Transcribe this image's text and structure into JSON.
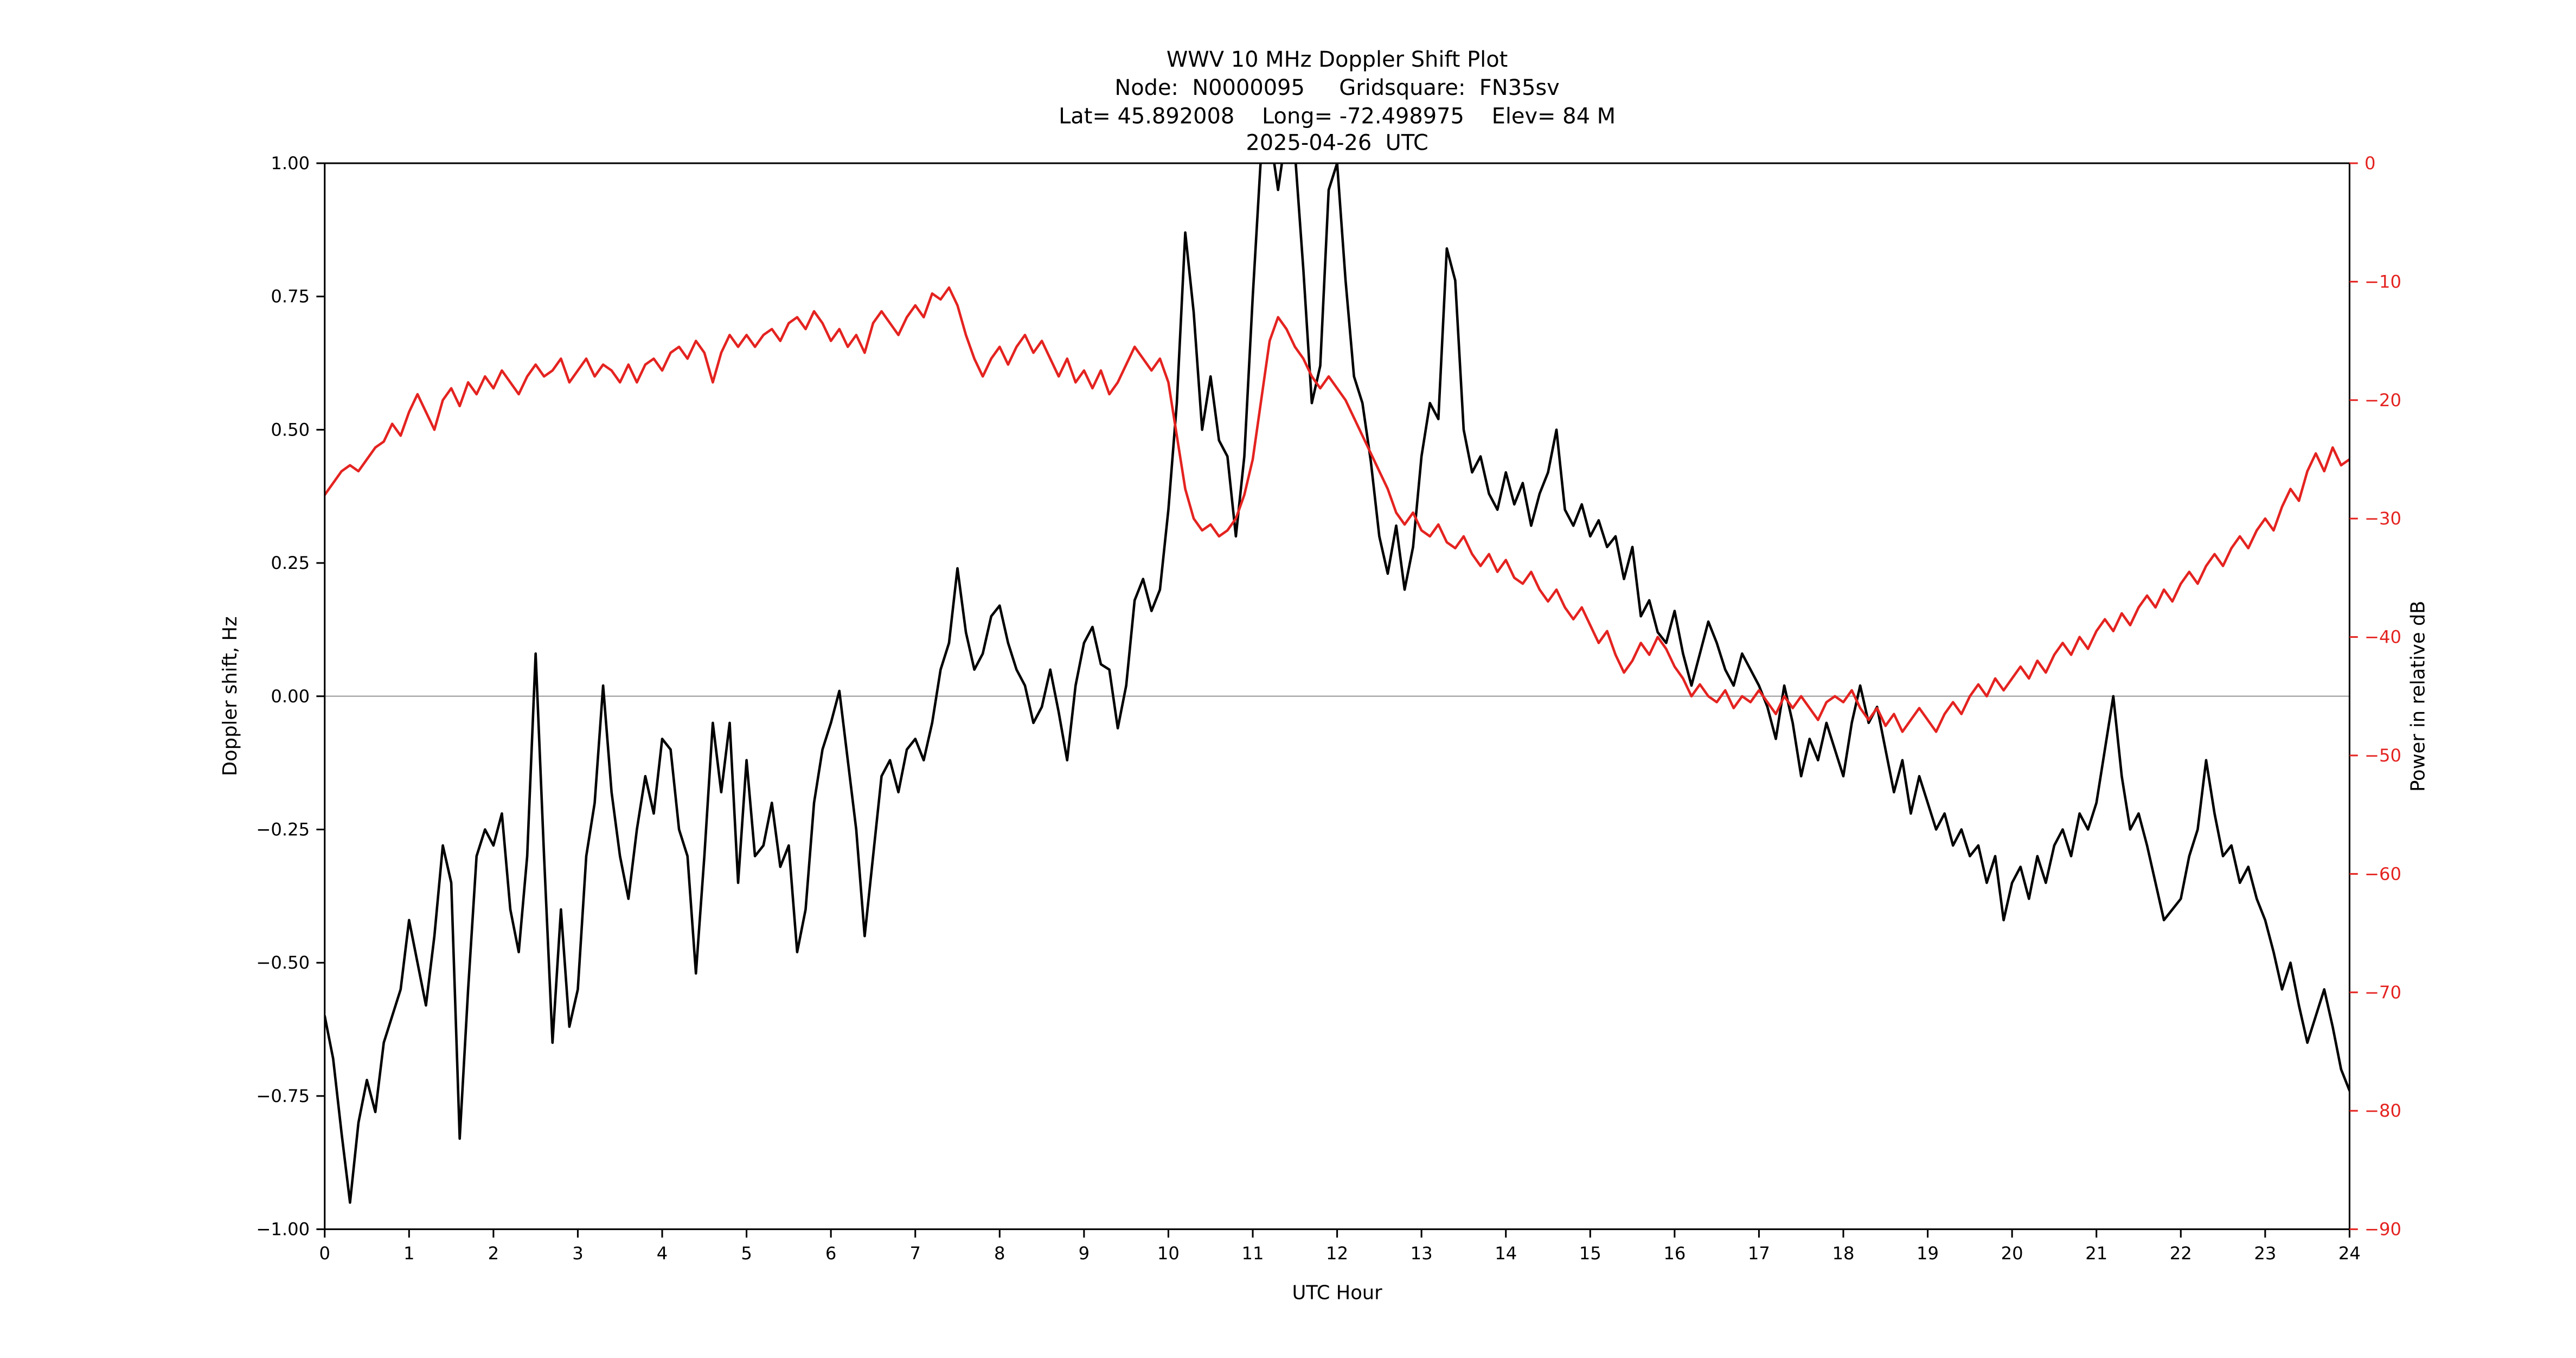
{
  "figure": {
    "background": "#ffffff"
  },
  "title": {
    "line1": "WWV 10 MHz Doppler Shift Plot",
    "line2": "Node:  N0000095     Gridsquare:  FN35sv",
    "line3": "Lat= 45.892008    Long= -72.498975    Elev= 84 M",
    "line4": "2025-04-26  UTC"
  },
  "axes": {
    "x_label": "UTC Hour",
    "y_left_label": "Doppler shift, Hz",
    "y_right_label": "Power in relative dB",
    "x_ticks": [
      {
        "v": 0,
        "label": "0"
      },
      {
        "v": 1,
        "label": "1"
      },
      {
        "v": 2,
        "label": "2"
      },
      {
        "v": 3,
        "label": "3"
      },
      {
        "v": 4,
        "label": "4"
      },
      {
        "v": 5,
        "label": "5"
      },
      {
        "v": 6,
        "label": "6"
      },
      {
        "v": 7,
        "label": "7"
      },
      {
        "v": 8,
        "label": "8"
      },
      {
        "v": 9,
        "label": "9"
      },
      {
        "v": 10,
        "label": "10"
      },
      {
        "v": 11,
        "label": "11"
      },
      {
        "v": 12,
        "label": "12"
      },
      {
        "v": 13,
        "label": "13"
      },
      {
        "v": 14,
        "label": "14"
      },
      {
        "v": 15,
        "label": "15"
      },
      {
        "v": 16,
        "label": "16"
      },
      {
        "v": 17,
        "label": "17"
      },
      {
        "v": 18,
        "label": "18"
      },
      {
        "v": 19,
        "label": "19"
      },
      {
        "v": 20,
        "label": "20"
      },
      {
        "v": 21,
        "label": "21"
      },
      {
        "v": 22,
        "label": "22"
      },
      {
        "v": 23,
        "label": "23"
      },
      {
        "v": 24,
        "label": "24"
      }
    ],
    "y_left_ticks": [
      {
        "v": -1.0,
        "label": "−1.00"
      },
      {
        "v": -0.75,
        "label": "−0.75"
      },
      {
        "v": -0.5,
        "label": "−0.50"
      },
      {
        "v": -0.25,
        "label": "−0.25"
      },
      {
        "v": 0.0,
        "label": "0.00"
      },
      {
        "v": 0.25,
        "label": "0.25"
      },
      {
        "v": 0.5,
        "label": "0.50"
      },
      {
        "v": 0.75,
        "label": "0.75"
      },
      {
        "v": 1.0,
        "label": "1.00"
      }
    ],
    "y_right_ticks": [
      {
        "v": 0,
        "label": "0"
      },
      {
        "v": -10,
        "label": "−10"
      },
      {
        "v": -20,
        "label": "−20"
      },
      {
        "v": -30,
        "label": "−30"
      },
      {
        "v": -40,
        "label": "−40"
      },
      {
        "v": -50,
        "label": "−50"
      },
      {
        "v": -60,
        "label": "−60"
      },
      {
        "v": -70,
        "label": "−70"
      },
      {
        "v": -80,
        "label": "−80"
      },
      {
        "v": -90,
        "label": "−90"
      }
    ]
  },
  "colors": {
    "doppler": "#000000",
    "power": "#e42320",
    "zero_line": "#aaaaaa",
    "frame": "#000000"
  },
  "chart_data": {
    "type": "line",
    "title": "WWV 10 MHz Doppler Shift Plot",
    "xlabel": "UTC Hour",
    "ylabel_left": "Doppler shift, Hz",
    "ylabel_right": "Power in relative dB",
    "x_range": [
      0,
      24
    ],
    "y_left_range": [
      -1.0,
      1.0
    ],
    "y_right_range": [
      -90,
      0
    ],
    "grid": "zero-line-only",
    "legend": "none",
    "x_start": 0,
    "x_step": 0.1,
    "series": [
      {
        "name": "Doppler shift, Hz",
        "axis": "left",
        "color": "#000000",
        "values": [
          -0.6,
          -0.68,
          -0.82,
          -0.95,
          -0.8,
          -0.72,
          -0.78,
          -0.65,
          -0.6,
          -0.55,
          -0.42,
          -0.5,
          -0.58,
          -0.45,
          -0.28,
          -0.35,
          -0.83,
          -0.55,
          -0.3,
          -0.25,
          -0.28,
          -0.22,
          -0.4,
          -0.48,
          -0.3,
          0.08,
          -0.3,
          -0.65,
          -0.4,
          -0.62,
          -0.55,
          -0.3,
          -0.2,
          0.02,
          -0.18,
          -0.3,
          -0.38,
          -0.25,
          -0.15,
          -0.22,
          -0.08,
          -0.1,
          -0.25,
          -0.3,
          -0.52,
          -0.3,
          -0.05,
          -0.18,
          -0.05,
          -0.35,
          -0.12,
          -0.3,
          -0.28,
          -0.2,
          -0.32,
          -0.28,
          -0.48,
          -0.4,
          -0.2,
          -0.1,
          -0.05,
          0.01,
          -0.12,
          -0.25,
          -0.45,
          -0.3,
          -0.15,
          -0.12,
          -0.18,
          -0.1,
          -0.08,
          -0.12,
          -0.05,
          0.05,
          0.1,
          0.24,
          0.12,
          0.05,
          0.08,
          0.15,
          0.17,
          0.1,
          0.05,
          0.02,
          -0.05,
          -0.02,
          0.05,
          -0.03,
          -0.12,
          0.02,
          0.1,
          0.13,
          0.06,
          0.05,
          -0.06,
          0.02,
          0.18,
          0.22,
          0.16,
          0.2,
          0.35,
          0.55,
          0.87,
          0.72,
          0.5,
          0.6,
          0.48,
          0.45,
          0.3,
          0.45,
          0.75,
          1.02,
          1.06,
          0.95,
          1.06,
          1.02,
          0.8,
          0.55,
          0.62,
          0.95,
          1.0,
          0.78,
          0.6,
          0.55,
          0.44,
          0.3,
          0.23,
          0.32,
          0.2,
          0.28,
          0.45,
          0.55,
          0.52,
          0.84,
          0.78,
          0.5,
          0.42,
          0.45,
          0.38,
          0.35,
          0.42,
          0.36,
          0.4,
          0.32,
          0.38,
          0.42,
          0.5,
          0.35,
          0.32,
          0.36,
          0.3,
          0.33,
          0.28,
          0.3,
          0.22,
          0.28,
          0.15,
          0.18,
          0.12,
          0.1,
          0.16,
          0.08,
          0.02,
          0.08,
          0.14,
          0.1,
          0.05,
          0.02,
          0.08,
          0.05,
          0.02,
          -0.02,
          -0.08,
          0.02,
          -0.05,
          -0.15,
          -0.08,
          -0.12,
          -0.05,
          -0.1,
          -0.15,
          -0.05,
          0.02,
          -0.05,
          -0.02,
          -0.1,
          -0.18,
          -0.12,
          -0.22,
          -0.15,
          -0.2,
          -0.25,
          -0.22,
          -0.28,
          -0.25,
          -0.3,
          -0.28,
          -0.35,
          -0.3,
          -0.42,
          -0.35,
          -0.32,
          -0.38,
          -0.3,
          -0.35,
          -0.28,
          -0.25,
          -0.3,
          -0.22,
          -0.25,
          -0.2,
          -0.1,
          0.0,
          -0.15,
          -0.25,
          -0.22,
          -0.28,
          -0.35,
          -0.42,
          -0.4,
          -0.38,
          -0.3,
          -0.25,
          -0.12,
          -0.22,
          -0.3,
          -0.28,
          -0.35,
          -0.32,
          -0.38,
          -0.42,
          -0.48,
          -0.55,
          -0.5,
          -0.58,
          -0.65,
          -0.6,
          -0.55,
          -0.62,
          -0.7,
          -0.74
        ]
      },
      {
        "name": "Power in relative dB",
        "axis": "right",
        "color": "#e42320",
        "values": [
          -28.0,
          -27.0,
          -26.0,
          -25.5,
          -26.0,
          -25.0,
          -24.0,
          -23.5,
          -22.0,
          -23.0,
          -21.0,
          -19.5,
          -21.0,
          -22.5,
          -20.0,
          -19.0,
          -20.5,
          -18.5,
          -19.5,
          -18.0,
          -19.0,
          -17.5,
          -18.5,
          -19.5,
          -18.0,
          -17.0,
          -18.0,
          -17.5,
          -16.5,
          -18.5,
          -17.5,
          -16.5,
          -18.0,
          -17.0,
          -17.5,
          -18.5,
          -17.0,
          -18.5,
          -17.0,
          -16.5,
          -17.5,
          -16.0,
          -15.5,
          -16.5,
          -15.0,
          -16.0,
          -18.5,
          -16.0,
          -14.5,
          -15.5,
          -14.5,
          -15.5,
          -14.5,
          -14.0,
          -15.0,
          -13.5,
          -13.0,
          -14.0,
          -12.5,
          -13.5,
          -15.0,
          -14.0,
          -15.5,
          -14.5,
          -16.0,
          -13.5,
          -12.5,
          -13.5,
          -14.5,
          -13.0,
          -12.0,
          -13.0,
          -11.0,
          -11.5,
          -10.5,
          -12.0,
          -14.5,
          -16.5,
          -18.0,
          -16.5,
          -15.5,
          -17.0,
          -15.5,
          -14.5,
          -16.0,
          -15.0,
          -16.5,
          -18.0,
          -16.5,
          -18.5,
          -17.5,
          -19.0,
          -17.5,
          -19.5,
          -18.5,
          -17.0,
          -15.5,
          -16.5,
          -17.5,
          -16.5,
          -18.5,
          -23.0,
          -27.5,
          -30.0,
          -31.0,
          -30.5,
          -31.5,
          -31.0,
          -30.0,
          -28.0,
          -25.0,
          -20.0,
          -15.0,
          -13.0,
          -14.0,
          -15.5,
          -16.5,
          -18.0,
          -19.0,
          -18.0,
          -19.0,
          -20.0,
          -21.5,
          -23.0,
          -24.5,
          -26.0,
          -27.5,
          -29.5,
          -30.5,
          -29.5,
          -31.0,
          -31.5,
          -30.5,
          -32.0,
          -32.5,
          -31.5,
          -33.0,
          -34.0,
          -33.0,
          -34.5,
          -33.5,
          -35.0,
          -35.5,
          -34.5,
          -36.0,
          -37.0,
          -36.0,
          -37.5,
          -38.5,
          -37.5,
          -39.0,
          -40.5,
          -39.5,
          -41.5,
          -43.0,
          -42.0,
          -40.5,
          -41.5,
          -40.0,
          -41.0,
          -42.5,
          -43.5,
          -45.0,
          -44.0,
          -45.0,
          -45.5,
          -44.5,
          -46.0,
          -45.0,
          -45.5,
          -44.5,
          -45.5,
          -46.5,
          -45.0,
          -46.0,
          -45.0,
          -46.0,
          -47.0,
          -45.5,
          -45.0,
          -45.5,
          -44.5,
          -46.0,
          -47.0,
          -46.0,
          -47.5,
          -46.5,
          -48.0,
          -47.0,
          -46.0,
          -47.0,
          -48.0,
          -46.5,
          -45.5,
          -46.5,
          -45.0,
          -44.0,
          -45.0,
          -43.5,
          -44.5,
          -43.5,
          -42.5,
          -43.5,
          -42.0,
          -43.0,
          -41.5,
          -40.5,
          -41.5,
          -40.0,
          -41.0,
          -39.5,
          -38.5,
          -39.5,
          -38.0,
          -39.0,
          -37.5,
          -36.5,
          -37.5,
          -36.0,
          -37.0,
          -35.5,
          -34.5,
          -35.5,
          -34.0,
          -33.0,
          -34.0,
          -32.5,
          -31.5,
          -32.5,
          -31.0,
          -30.0,
          -31.0,
          -29.0,
          -27.5,
          -28.5,
          -26.0,
          -24.5,
          -26.0,
          -24.0,
          -25.5,
          -25.0
        ]
      }
    ]
  }
}
